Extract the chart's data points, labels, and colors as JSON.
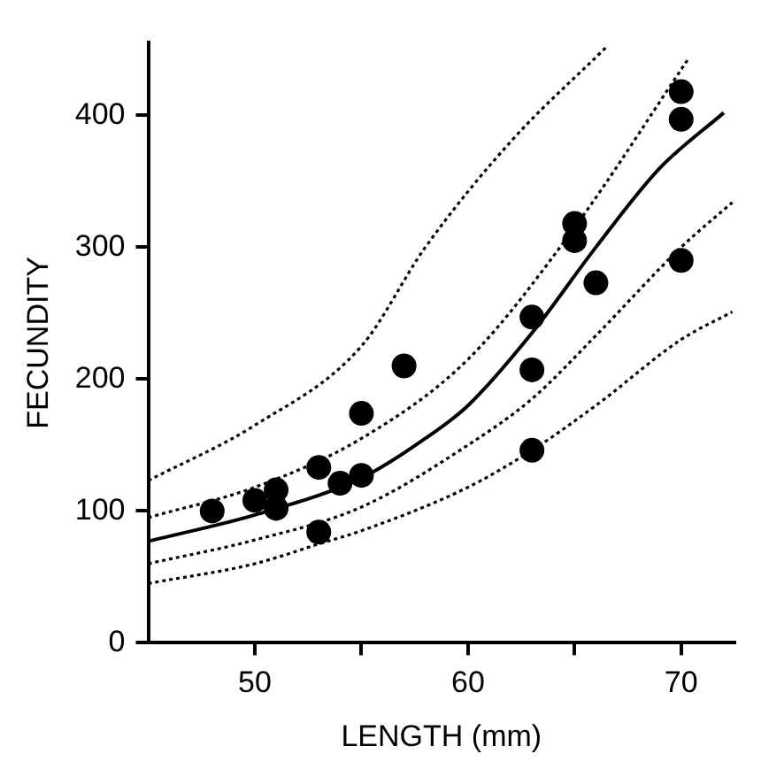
{
  "chart_data": {
    "type": "scatter",
    "xlabel": "LENGTH (mm)",
    "ylabel": "FECUNDITY",
    "xlim": [
      45,
      72.5
    ],
    "ylim": [
      0,
      455
    ],
    "xticks": [
      50,
      {
        "value": 55,
        "label": null
      },
      60,
      {
        "value": 65,
        "label": null
      },
      70
    ],
    "yticks": [
      0,
      100,
      200,
      300,
      400
    ],
    "series": [
      {
        "color": "#000000",
        "marker": "circle",
        "x": [
          48,
          50,
          51,
          51,
          53,
          53,
          54,
          55,
          55,
          57,
          63,
          63,
          63,
          65,
          65,
          66,
          70,
          70,
          70
        ],
        "values": [
          100,
          108,
          116,
          102,
          133,
          84,
          121,
          127,
          174,
          210,
          247,
          207,
          146,
          318,
          305,
          273,
          418,
          397,
          290
        ]
      },
      {
        "type": "line",
        "color": "#000000",
        "marker": "none",
        "line_style": "solid",
        "x": [
          45,
          50,
          55,
          58,
          60,
          63,
          66,
          69,
          72
        ],
        "values": [
          77,
          97,
          125,
          155,
          180,
          235,
          300,
          360,
          402
        ]
      },
      {
        "type": "line",
        "color": "#000000",
        "marker": "none",
        "line_style": "dotted",
        "x": [
          45,
          50,
          55,
          60,
          65,
          70.3
        ],
        "values": [
          95,
          118,
          155,
          215,
          315,
          442
        ]
      },
      {
        "type": "line",
        "color": "#000000",
        "marker": "none",
        "line_style": "dotted",
        "x": [
          45,
          50,
          55,
          58,
          62,
          66.5
        ],
        "values": [
          123,
          165,
          225,
          300,
          380,
          452
        ]
      },
      {
        "type": "line",
        "color": "#000000",
        "marker": "none",
        "line_style": "dotted",
        "x": [
          45,
          50,
          55,
          60,
          63,
          66,
          70,
          72.4
        ],
        "values": [
          60,
          78,
          103,
          150,
          185,
          233,
          300,
          334
        ]
      },
      {
        "type": "line",
        "color": "#000000",
        "marker": "none",
        "line_style": "dotted",
        "x": [
          45,
          50,
          53,
          55,
          60,
          63,
          66,
          70,
          72.4
        ],
        "values": [
          45,
          60,
          75,
          85,
          118,
          146,
          180,
          230,
          251
        ]
      }
    ]
  }
}
